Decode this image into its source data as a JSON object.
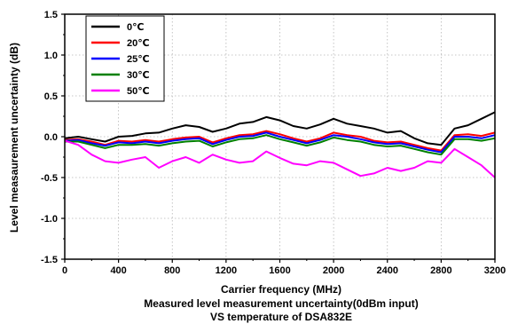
{
  "chart_data": {
    "type": "line",
    "title": "",
    "xlabel": "Carrier frequency (MHz)",
    "ylabel": "Level measaurement uncertainty (dB)",
    "caption_lines": [
      "Measured level measurement uncertainty(0dBm input)",
      "VS temperature of DSA832E"
    ],
    "xlim": [
      0,
      3200
    ],
    "ylim": [
      -1.5,
      1.5
    ],
    "x_ticks": [
      "0",
      "400",
      "800",
      "1200",
      "1600",
      "2000",
      "2400",
      "2800",
      "3200"
    ],
    "y_ticks": [
      "-1.5",
      "-1.0",
      "-0.5",
      "0.0",
      "0.5",
      "1.0",
      "1.5"
    ],
    "grid": true,
    "legend_position": "top-left",
    "x": [
      0,
      100,
      200,
      300,
      400,
      500,
      600,
      700,
      800,
      900,
      1000,
      1100,
      1200,
      1300,
      1400,
      1500,
      1600,
      1700,
      1800,
      1900,
      2000,
      2100,
      2200,
      2300,
      2400,
      2500,
      2600,
      2700,
      2800,
      2900,
      3000,
      3100,
      3200
    ],
    "series": [
      {
        "name": "0℃",
        "color": "#000000",
        "values": [
          -0.02,
          0.0,
          -0.03,
          -0.06,
          0.0,
          0.01,
          0.04,
          0.05,
          0.1,
          0.14,
          0.12,
          0.06,
          0.1,
          0.16,
          0.18,
          0.24,
          0.2,
          0.13,
          0.1,
          0.15,
          0.22,
          0.16,
          0.13,
          0.1,
          0.05,
          0.07,
          -0.02,
          -0.08,
          -0.1,
          0.1,
          0.14,
          0.22,
          0.3
        ]
      },
      {
        "name": "20℃",
        "color": "#ff0000",
        "values": [
          -0.04,
          -0.03,
          -0.06,
          -0.1,
          -0.05,
          -0.06,
          -0.04,
          -0.06,
          -0.03,
          -0.01,
          0.0,
          -0.07,
          -0.02,
          0.02,
          0.03,
          0.07,
          0.03,
          -0.02,
          -0.06,
          -0.02,
          0.05,
          0.02,
          0.0,
          -0.05,
          -0.07,
          -0.06,
          -0.1,
          -0.14,
          -0.17,
          0.02,
          0.03,
          0.01,
          0.05
        ]
      },
      {
        "name": "25℃",
        "color": "#0000ff",
        "values": [
          -0.05,
          -0.04,
          -0.08,
          -0.11,
          -0.07,
          -0.08,
          -0.06,
          -0.08,
          -0.05,
          -0.03,
          -0.02,
          -0.09,
          -0.04,
          0.0,
          0.01,
          0.05,
          0.0,
          -0.04,
          -0.08,
          -0.04,
          0.02,
          0.0,
          -0.03,
          -0.07,
          -0.09,
          -0.08,
          -0.12,
          -0.16,
          -0.19,
          0.0,
          0.0,
          -0.02,
          0.02
        ]
      },
      {
        "name": "30℃",
        "color": "#008000",
        "values": [
          -0.06,
          -0.06,
          -0.1,
          -0.14,
          -0.1,
          -0.1,
          -0.09,
          -0.11,
          -0.08,
          -0.06,
          -0.05,
          -0.12,
          -0.07,
          -0.03,
          -0.02,
          0.02,
          -0.03,
          -0.07,
          -0.11,
          -0.07,
          -0.01,
          -0.04,
          -0.06,
          -0.1,
          -0.12,
          -0.11,
          -0.15,
          -0.19,
          -0.22,
          -0.03,
          -0.03,
          -0.05,
          -0.02
        ]
      },
      {
        "name": "50℃",
        "color": "#ff00ff",
        "values": [
          -0.05,
          -0.1,
          -0.22,
          -0.3,
          -0.32,
          -0.28,
          -0.25,
          -0.38,
          -0.3,
          -0.25,
          -0.32,
          -0.22,
          -0.28,
          -0.32,
          -0.3,
          -0.18,
          -0.26,
          -0.33,
          -0.35,
          -0.3,
          -0.32,
          -0.4,
          -0.48,
          -0.45,
          -0.38,
          -0.42,
          -0.38,
          -0.3,
          -0.32,
          -0.15,
          -0.25,
          -0.35,
          -0.5
        ]
      }
    ]
  }
}
